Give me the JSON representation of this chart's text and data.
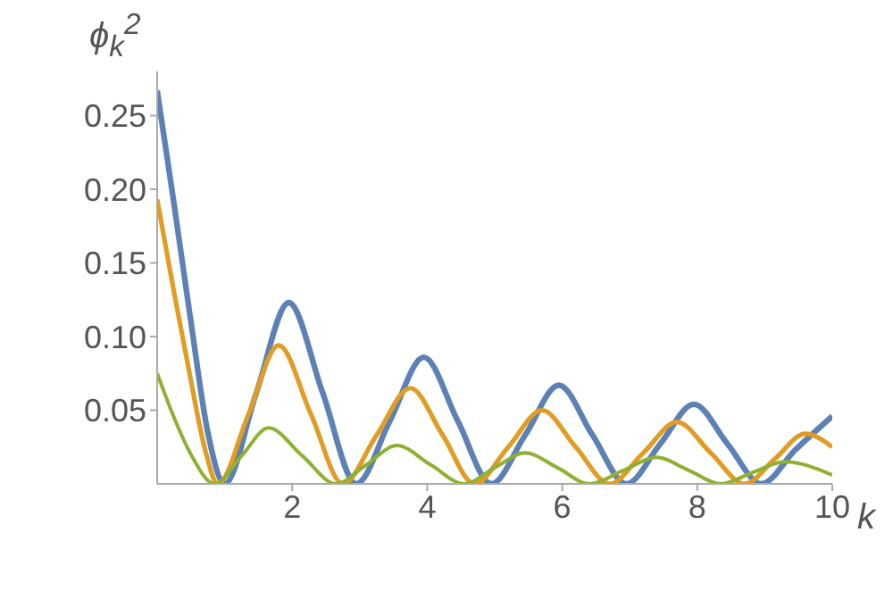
{
  "chart_data": {
    "type": "line",
    "xlabel": "k",
    "ylabel": "ϕ$_{k}$$^{2}$",
    "xlim": [
      0,
      10
    ],
    "ylim": [
      0,
      0.28
    ],
    "xticks": [
      2,
      4,
      6,
      8,
      10
    ],
    "yticks": [
      0.05,
      {
        "value": 0.1,
        "label": "0.10"
      },
      0.15,
      {
        "value": 0.2,
        "label": "0.20"
      },
      0.25
    ],
    "grid": false,
    "legend": false,
    "marker": "none",
    "line_style": "solid",
    "series": [
      {
        "color": "#5e81b5",
        "x": [
          0,
          0.25,
          0.5,
          0.75,
          1.0,
          1.47,
          1.95,
          2.45,
          2.95,
          3.45,
          3.95,
          4.45,
          4.95,
          5.45,
          5.95,
          6.45,
          6.95,
          7.45,
          7.95,
          8.45,
          8.95,
          9.45,
          10
        ],
        "values": [
          0.267,
          0.19,
          0.11,
          0.035,
          0,
          0.062,
          0.123,
          0.062,
          0,
          0.043,
          0.086,
          0.043,
          0,
          0.033,
          0.067,
          0.033,
          0,
          0.027,
          0.054,
          0.027,
          0,
          0.023,
          0.046
        ]
      },
      {
        "color": "#e19c24",
        "x": [
          0,
          0.25,
          0.5,
          0.7,
          0.9,
          1.35,
          1.8,
          2.28,
          2.75,
          3.25,
          3.75,
          4.23,
          4.7,
          5.2,
          5.7,
          6.2,
          6.7,
          7.2,
          7.7,
          8.2,
          8.7,
          9.15,
          9.6,
          10
        ],
        "values": [
          0.193,
          0.13,
          0.07,
          0.025,
          0,
          0.047,
          0.094,
          0.047,
          0,
          0.033,
          0.065,
          0.033,
          0,
          0.025,
          0.05,
          0.025,
          0,
          0.021,
          0.042,
          0.021,
          0,
          0.017,
          0.034,
          0.025
        ]
      },
      {
        "color": "#8fb032",
        "x": [
          0,
          0.25,
          0.5,
          0.85,
          1.25,
          1.65,
          2.15,
          2.65,
          3.1,
          3.55,
          4.05,
          4.55,
          5.0,
          5.45,
          5.93,
          6.4,
          6.9,
          7.4,
          7.88,
          8.35,
          8.83,
          9.3,
          10
        ],
        "values": [
          0.075,
          0.045,
          0.02,
          0,
          0.019,
          0.038,
          0.019,
          0,
          0.013,
          0.026,
          0.013,
          0,
          0.011,
          0.021,
          0.011,
          0,
          0.009,
          0.018,
          0.009,
          0,
          0.008,
          0.015,
          0.006
        ]
      }
    ]
  }
}
